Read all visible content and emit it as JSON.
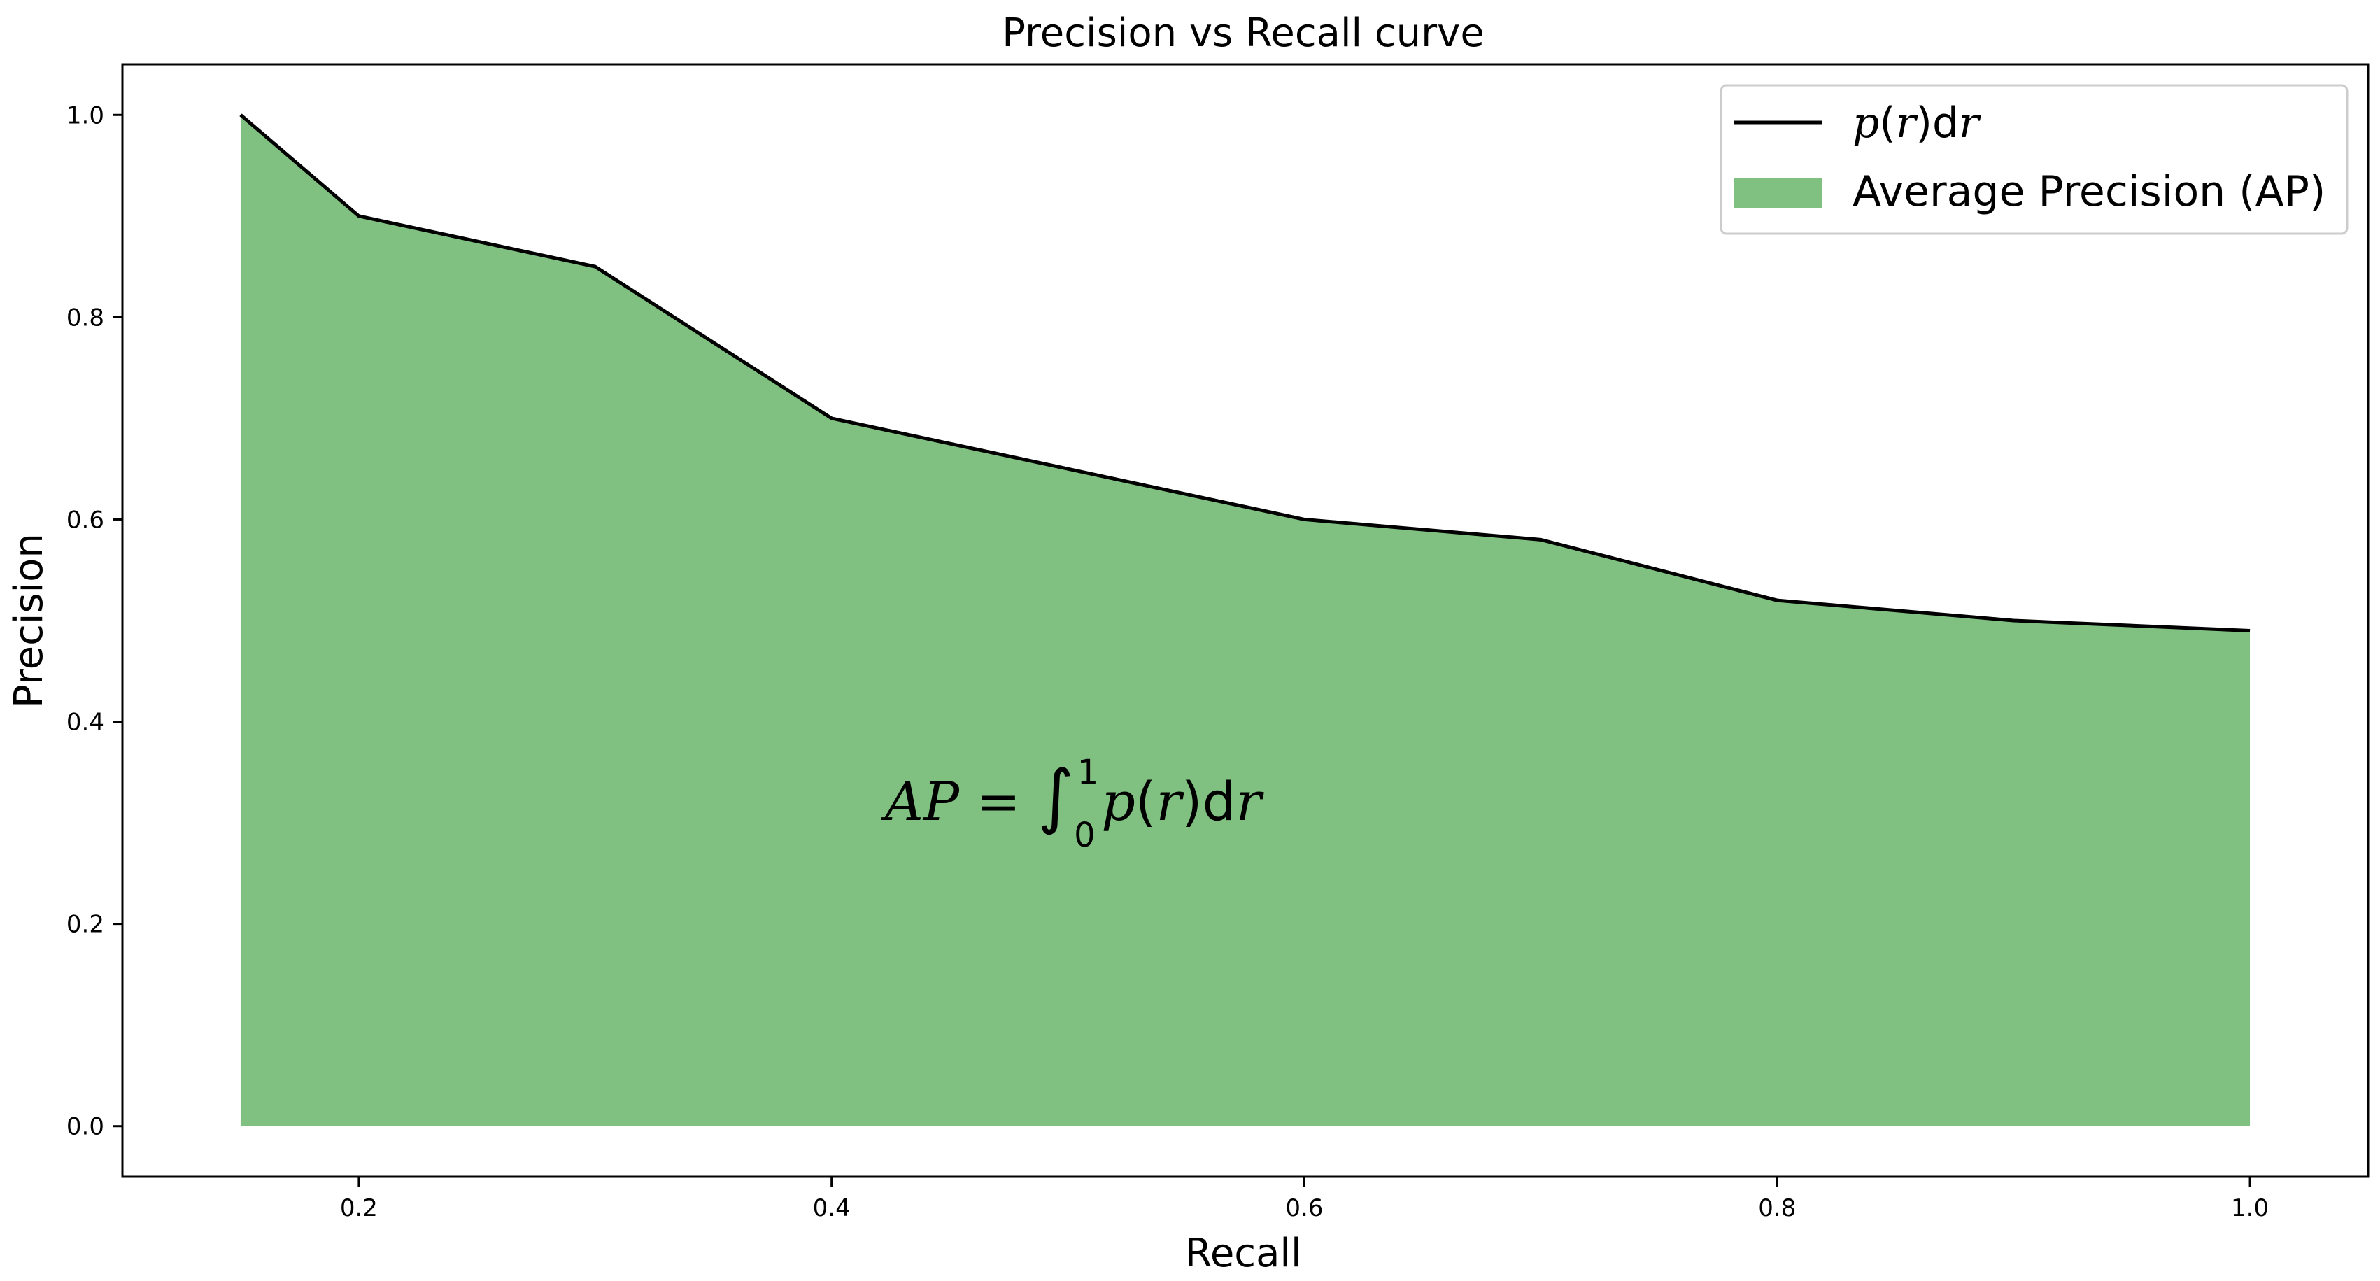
{
  "chart_data": {
    "type": "area",
    "title": "Precision vs Recall curve",
    "xlabel": "Recall",
    "ylabel": "Precision",
    "xlim": [
      0.1,
      1.05
    ],
    "ylim": [
      -0.05,
      1.05
    ],
    "x_ticks": [
      "0.2",
      "0.4",
      "0.6",
      "0.8",
      "1.0"
    ],
    "y_ticks": [
      "0.0",
      "0.2",
      "0.4",
      "0.6",
      "0.8",
      "1.0"
    ],
    "x": [
      0.15,
      0.2,
      0.3,
      0.4,
      0.5,
      0.6,
      0.7,
      0.8,
      0.9,
      1.0
    ],
    "series": [
      {
        "name": "p(r)dr",
        "kind": "line",
        "color": "#000000",
        "values": [
          1.0,
          0.9,
          0.85,
          0.7,
          0.65,
          0.6,
          0.58,
          0.52,
          0.5,
          0.49
        ]
      },
      {
        "name": "Average Precision (AP)",
        "kind": "fill",
        "color": "#80c080",
        "values": [
          1.0,
          0.9,
          0.85,
          0.7,
          0.65,
          0.6,
          0.58,
          0.52,
          0.5,
          0.49
        ]
      }
    ],
    "legend": {
      "position": "top-right",
      "line_label": "p(r)dr",
      "fill_label": "Average Precision (AP)"
    },
    "annotation": {
      "text": "AP = ∫₀¹ p(r)dr",
      "x": 0.5,
      "y": 0.3
    },
    "grid": false
  }
}
